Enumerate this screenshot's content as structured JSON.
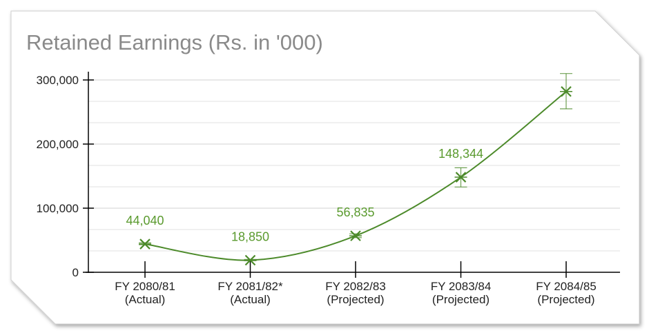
{
  "colors": {
    "series": "#4c8a2a",
    "label": "#5a9a2e",
    "grid": "#d9d9d9",
    "axis": "#000000",
    "title": "#8a8a8a"
  },
  "chart_data": {
    "type": "line",
    "title": "Retained Earnings (Rs. in '000)",
    "xlabel": "",
    "ylabel": "",
    "categories": [
      [
        "FY 2080/81",
        "(Actual)"
      ],
      [
        "FY 2081/82*",
        "(Actual)"
      ],
      [
        "FY 2082/83",
        "(Projected)"
      ],
      [
        "FY 2083/84",
        "(Projected)"
      ],
      [
        "FY 2084/85",
        "(Projected)"
      ]
    ],
    "values": [
      44040,
      18850,
      56835,
      148344,
      282000
    ],
    "data_labels": [
      "44,040",
      "18,850",
      "56,835",
      "148,344",
      ""
    ],
    "error_bars": [
      [
        43000,
        46000
      ],
      [
        18000,
        20000
      ],
      [
        54000,
        60000
      ],
      [
        133000,
        163000
      ],
      [
        255000,
        310000
      ]
    ],
    "ylim": [
      0,
      300000
    ],
    "y_ticks": [
      0,
      100000,
      200000,
      300000
    ],
    "y_tick_labels": [
      "0",
      "100,000",
      "200,000",
      "300,000"
    ],
    "grid": true,
    "legend": "none"
  }
}
